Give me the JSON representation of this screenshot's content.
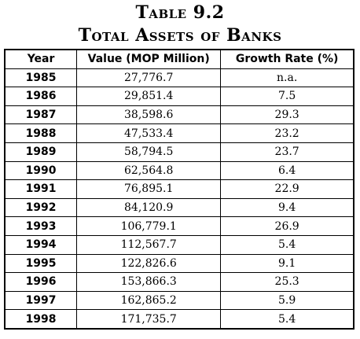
{
  "title_line1": "Table 9.2",
  "title_line2": "Total Assets of Banks",
  "headers": [
    "Year",
    "Value (MOP Million)",
    "Growth Rate (%)"
  ],
  "rows": [
    {
      "year": "1985",
      "value": "27,776.7",
      "growth": "n.a."
    },
    {
      "year": "1986",
      "value": "29,851.4",
      "growth": "7.5"
    },
    {
      "year": "1987",
      "value": "38,598.6",
      "growth": "29.3"
    },
    {
      "year": "1988",
      "value": "47,533.4",
      "growth": "23.2"
    },
    {
      "year": "1989",
      "value": "58,794.5",
      "growth": "23.7"
    },
    {
      "year": "1990",
      "value": "62,564.8",
      "growth": "6.4"
    },
    {
      "year": "1991",
      "value": "76,895.1",
      "growth": "22.9"
    },
    {
      "year": "1992",
      "value": "84,120.9",
      "growth": "9.4"
    },
    {
      "year": "1993",
      "value": "106,779.1",
      "growth": "26.9"
    },
    {
      "year": "1994",
      "value": "112,567.7",
      "growth": "5.4"
    },
    {
      "year": "1995",
      "value": "122,826.6",
      "growth": "9.1"
    },
    {
      "year": "1996",
      "value": "153,866.3",
      "growth": "25.3"
    },
    {
      "year": "1997",
      "value": "162,865.2",
      "growth": "5.9"
    },
    {
      "year": "1998",
      "value": "171,735.7",
      "growth": "5.4"
    }
  ]
}
